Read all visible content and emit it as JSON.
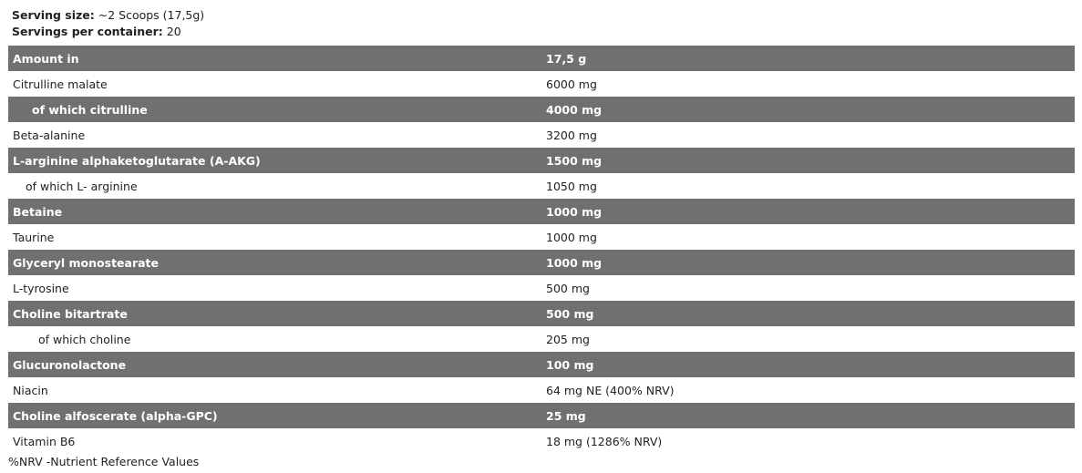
{
  "serving": {
    "size_label": "Serving size:",
    "size_value": " ~2 Scoops (17,5g)",
    "per_label": "Servings per container:",
    "per_value": " 20"
  },
  "header": {
    "name": "Amount in",
    "amount": "17,5 g"
  },
  "rows": [
    {
      "name": "Citrulline malate",
      "amount": "6000 mg",
      "indent": 0,
      "dark": false
    },
    {
      "name": "of which citrulline",
      "amount": "4000 mg",
      "indent": 21,
      "dark": true
    },
    {
      "name": "Beta-alanine",
      "amount": "3200 mg",
      "indent": 0,
      "dark": false
    },
    {
      "name": "L-arginine alphaketoglutarate (A-AKG)",
      "amount": "1500 mg",
      "indent": 0,
      "dark": true
    },
    {
      "name": "of which L- arginine",
      "amount": "1050 mg",
      "indent": 14,
      "dark": false
    },
    {
      "name": "Betaine",
      "amount": "1000 mg",
      "indent": 0,
      "dark": true
    },
    {
      "name": "Taurine",
      "amount": "1000 mg",
      "indent": 0,
      "dark": false
    },
    {
      "name": "Glyceryl monostearate",
      "amount": "1000 mg",
      "indent": 0,
      "dark": true
    },
    {
      "name": "L-tyrosine",
      "amount": "500 mg",
      "indent": 0,
      "dark": false
    },
    {
      "name": "Choline bitartrate",
      "amount": "500 mg",
      "indent": 0,
      "dark": true
    },
    {
      "name": "of which choline",
      "amount": "205 mg",
      "indent": 28,
      "dark": false
    },
    {
      "name": "Glucuronolactone",
      "amount": "100 mg",
      "indent": 0,
      "dark": true
    },
    {
      "name": "Niacin",
      "amount": "64 mg NE (400% NRV)",
      "indent": 0,
      "dark": false
    },
    {
      "name": "Choline alfoscerate (alpha-GPC)",
      "amount": "25 mg",
      "indent": 0,
      "dark": true
    },
    {
      "name": "Vitamin B6",
      "amount": "18 mg (1286% NRV)",
      "indent": 0,
      "dark": false
    }
  ],
  "footnote": "%NRV -Nutrient Reference Values",
  "colors": {
    "dark_row": "#707070"
  }
}
